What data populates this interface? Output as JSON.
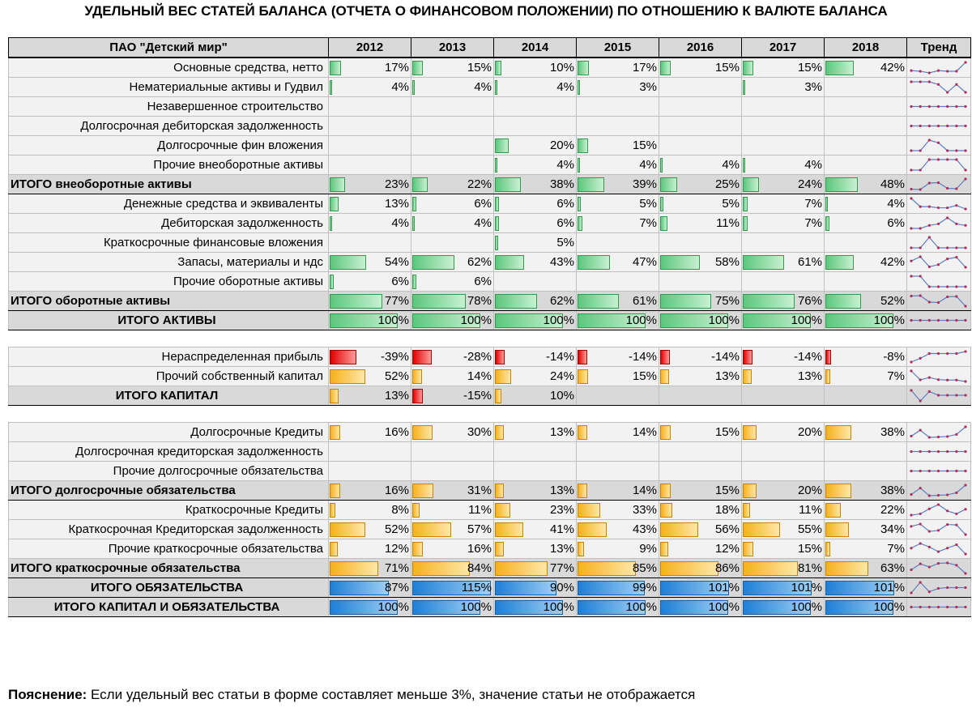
{
  "title": "УДЕЛЬНЫЙ ВЕС СТАТЕЙ БАЛАНСА (ОТЧЕТА О ФИНАНСОВОМ ПОЛОЖЕНИИ) ПО ОТНОШЕНИЮ К ВАЛЮТЕ БАЛАНСА",
  "header": {
    "company": "ПАО \"Детский мир\"",
    "years": [
      "2012",
      "2013",
      "2014",
      "2015",
      "2016",
      "2017",
      "2018"
    ],
    "trend": "Тренд"
  },
  "colors": {
    "green": "#5cc77d",
    "red": "#e00000",
    "orange": "#f5b21b",
    "blue": "#1f7fd6",
    "trend_line": "#5b7fc0",
    "trend_dot": "#b0305a"
  },
  "rows": [
    {
      "label": "Основные средства, нетто",
      "type": "item",
      "color": "g",
      "values": [
        17,
        15,
        10,
        17,
        15,
        15,
        42
      ]
    },
    {
      "label": "Нематериальные активы и Гудвил",
      "type": "item",
      "color": "g",
      "values": [
        4,
        4,
        4,
        3,
        null,
        3,
        null
      ]
    },
    {
      "label": "Незавершенное строительство",
      "type": "item",
      "color": "g",
      "values": [
        null,
        null,
        null,
        null,
        null,
        null,
        null
      ]
    },
    {
      "label": "Долгосрочная дебиторская задолженность",
      "type": "item",
      "color": "g",
      "values": [
        null,
        null,
        null,
        null,
        null,
        null,
        null
      ]
    },
    {
      "label": "Долгосрочные фин вложения",
      "type": "item",
      "color": "g",
      "values": [
        null,
        null,
        20,
        15,
        null,
        null,
        null
      ]
    },
    {
      "label": "Прочие внеоборотные активы",
      "type": "item",
      "color": "g",
      "values": [
        null,
        null,
        4,
        4,
        4,
        4,
        null
      ]
    },
    {
      "label": "ИТОГО внеоборотные активы",
      "type": "total",
      "color": "g",
      "values": [
        23,
        22,
        38,
        39,
        25,
        24,
        48
      ]
    },
    {
      "label": "Денежные средства и эквиваленты",
      "type": "item",
      "color": "g",
      "values": [
        13,
        6,
        6,
        5,
        5,
        7,
        4
      ]
    },
    {
      "label": "Дебиторская задолженность",
      "type": "item",
      "color": "g",
      "values": [
        4,
        4,
        6,
        7,
        11,
        7,
        6
      ]
    },
    {
      "label": "Краткосрочные финансовые вложения",
      "type": "item",
      "color": "g",
      "values": [
        null,
        null,
        5,
        null,
        null,
        null,
        null
      ]
    },
    {
      "label": "Запасы, материалы и ндс",
      "type": "item",
      "color": "g",
      "values": [
        54,
        62,
        43,
        47,
        58,
        61,
        42
      ]
    },
    {
      "label": "Прочие оборотные активы",
      "type": "item",
      "color": "g",
      "values": [
        6,
        6,
        null,
        null,
        null,
        null,
        null
      ]
    },
    {
      "label": "ИТОГО оборотные активы",
      "type": "total",
      "color": "g",
      "values": [
        77,
        78,
        62,
        61,
        75,
        76,
        52
      ]
    },
    {
      "label": "ИТОГО АКТИВЫ",
      "type": "totalc",
      "color": "g",
      "values": [
        100,
        100,
        100,
        100,
        100,
        100,
        100
      ]
    },
    {
      "type": "spacer"
    },
    {
      "label": "Нераспределенная прибыль",
      "type": "item",
      "color": "r",
      "values": [
        -39,
        -28,
        -14,
        -14,
        -14,
        -14,
        -8
      ]
    },
    {
      "label": "Прочий собственный капитал",
      "type": "item",
      "color": "o",
      "values": [
        52,
        14,
        24,
        15,
        13,
        13,
        7
      ]
    },
    {
      "label": "ИТОГО КАПИТАЛ",
      "type": "totalc",
      "color": "o",
      "values": [
        13,
        -15,
        10,
        null,
        null,
        null,
        null
      ]
    },
    {
      "type": "spacer"
    },
    {
      "label": "Долгосрочные Кредиты",
      "type": "item",
      "color": "o",
      "values": [
        16,
        30,
        13,
        14,
        15,
        20,
        38
      ]
    },
    {
      "label": "Долгосрочная кредиторская задолженность",
      "type": "item",
      "color": "o",
      "values": [
        null,
        null,
        null,
        null,
        null,
        null,
        null
      ]
    },
    {
      "label": "Прочие долгосрочные обязательства",
      "type": "item",
      "color": "o",
      "values": [
        null,
        null,
        null,
        null,
        null,
        null,
        null
      ]
    },
    {
      "label": "ИТОГО долгосрочные обязательства",
      "type": "total",
      "color": "o",
      "values": [
        16,
        31,
        13,
        14,
        15,
        20,
        38
      ]
    },
    {
      "label": "Краткосрочные Кредиты",
      "type": "item",
      "color": "o",
      "values": [
        8,
        11,
        23,
        33,
        18,
        11,
        22
      ]
    },
    {
      "label": "Краткосрочная Кредиторская задолженность",
      "type": "item",
      "color": "o",
      "values": [
        52,
        57,
        41,
        43,
        56,
        55,
        34
      ]
    },
    {
      "label": "Прочие краткосрочные обязательства",
      "type": "item",
      "color": "o",
      "values": [
        12,
        16,
        13,
        9,
        12,
        15,
        7
      ]
    },
    {
      "label": "ИТОГО краткосрочные обязательства",
      "type": "total",
      "color": "o",
      "values": [
        71,
        84,
        77,
        85,
        86,
        81,
        63
      ]
    },
    {
      "label": "ИТОГО ОБЯЗАТЕЛЬСТВА",
      "type": "totalc",
      "color": "b",
      "values": [
        87,
        115,
        90,
        99,
        101,
        101,
        101
      ]
    },
    {
      "label": "ИТОГО КАПИТАЛ И ОБЯЗАТЕЛЬСТВА",
      "type": "totalc",
      "color": "b",
      "values": [
        100,
        100,
        100,
        100,
        100,
        100,
        100
      ]
    }
  ],
  "note": {
    "bold": "Пояснение:",
    "text": " Если удельный вес статьи в форме составляет меньше 3%, значение статьи не отображается"
  }
}
